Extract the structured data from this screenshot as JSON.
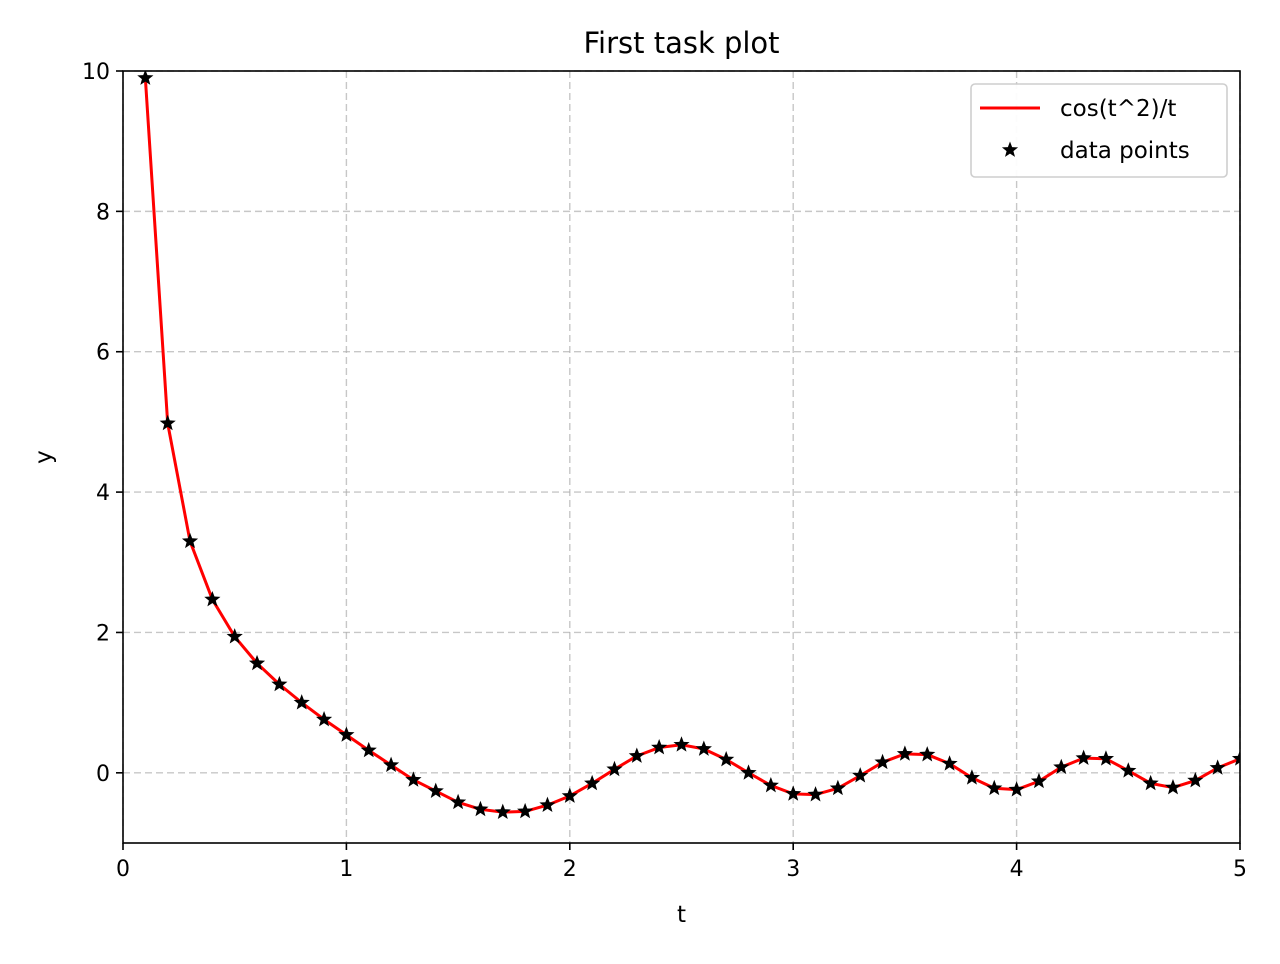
{
  "chart_data": {
    "type": "line",
    "title": "First task plot",
    "xlabel": "t",
    "ylabel": "y",
    "xlim": [
      0,
      5
    ],
    "ylim": [
      -1,
      10
    ],
    "xticks": [
      0,
      1,
      2,
      3,
      4,
      5
    ],
    "xtick_labels": [
      "0",
      "1",
      "2",
      "3",
      "4",
      "5"
    ],
    "yticks": [
      0,
      2,
      4,
      6,
      8,
      10
    ],
    "ytick_labels": [
      "0",
      "2",
      "4",
      "6",
      "8",
      "10"
    ],
    "grid": true,
    "legend_position": "top-right",
    "x": [
      0.1,
      0.2,
      0.3,
      0.4,
      0.5,
      0.6,
      0.7,
      0.8,
      0.9,
      1.0,
      1.1,
      1.2,
      1.3,
      1.4,
      1.5,
      1.6,
      1.7,
      1.8,
      1.9,
      2.0,
      2.1,
      2.2,
      2.3,
      2.4,
      2.5,
      2.6,
      2.7,
      2.8,
      2.9,
      3.0,
      3.1,
      3.2,
      3.3,
      3.4,
      3.5,
      3.6,
      3.7,
      3.8,
      3.9,
      4.0,
      4.1,
      4.2,
      4.3,
      4.4,
      4.5,
      4.6,
      4.7,
      4.8,
      4.9,
      5.0
    ],
    "series": [
      {
        "name": "cos(t^2)/t",
        "kind": "line",
        "color": "#ff0000",
        "values": [
          9.9,
          4.98,
          3.3,
          2.47,
          1.94,
          1.56,
          1.26,
          1.0,
          0.76,
          0.54,
          0.32,
          0.11,
          -0.1,
          -0.26,
          -0.42,
          -0.52,
          -0.56,
          -0.55,
          -0.46,
          -0.33,
          -0.15,
          0.05,
          0.24,
          0.36,
          0.4,
          0.34,
          0.19,
          0.0,
          -0.18,
          -0.3,
          -0.31,
          -0.22,
          -0.04,
          0.15,
          0.27,
          0.26,
          0.13,
          -0.07,
          -0.22,
          -0.24,
          -0.12,
          0.08,
          0.21,
          0.2,
          0.03,
          -0.15,
          -0.21,
          -0.11,
          0.07,
          0.2
        ]
      },
      {
        "name": "data points",
        "kind": "scatter",
        "marker": "star",
        "color": "#000000",
        "values": [
          9.9,
          4.98,
          3.3,
          2.47,
          1.94,
          1.56,
          1.26,
          1.0,
          0.76,
          0.54,
          0.32,
          0.11,
          -0.1,
          -0.26,
          -0.42,
          -0.52,
          -0.56,
          -0.55,
          -0.46,
          -0.33,
          -0.15,
          0.05,
          0.24,
          0.36,
          0.4,
          0.34,
          0.19,
          0.0,
          -0.18,
          -0.3,
          -0.31,
          -0.22,
          -0.04,
          0.15,
          0.27,
          0.26,
          0.13,
          -0.07,
          -0.22,
          -0.24,
          -0.12,
          0.08,
          0.21,
          0.2,
          0.03,
          -0.15,
          -0.21,
          -0.11,
          0.07,
          0.2
        ]
      }
    ]
  }
}
